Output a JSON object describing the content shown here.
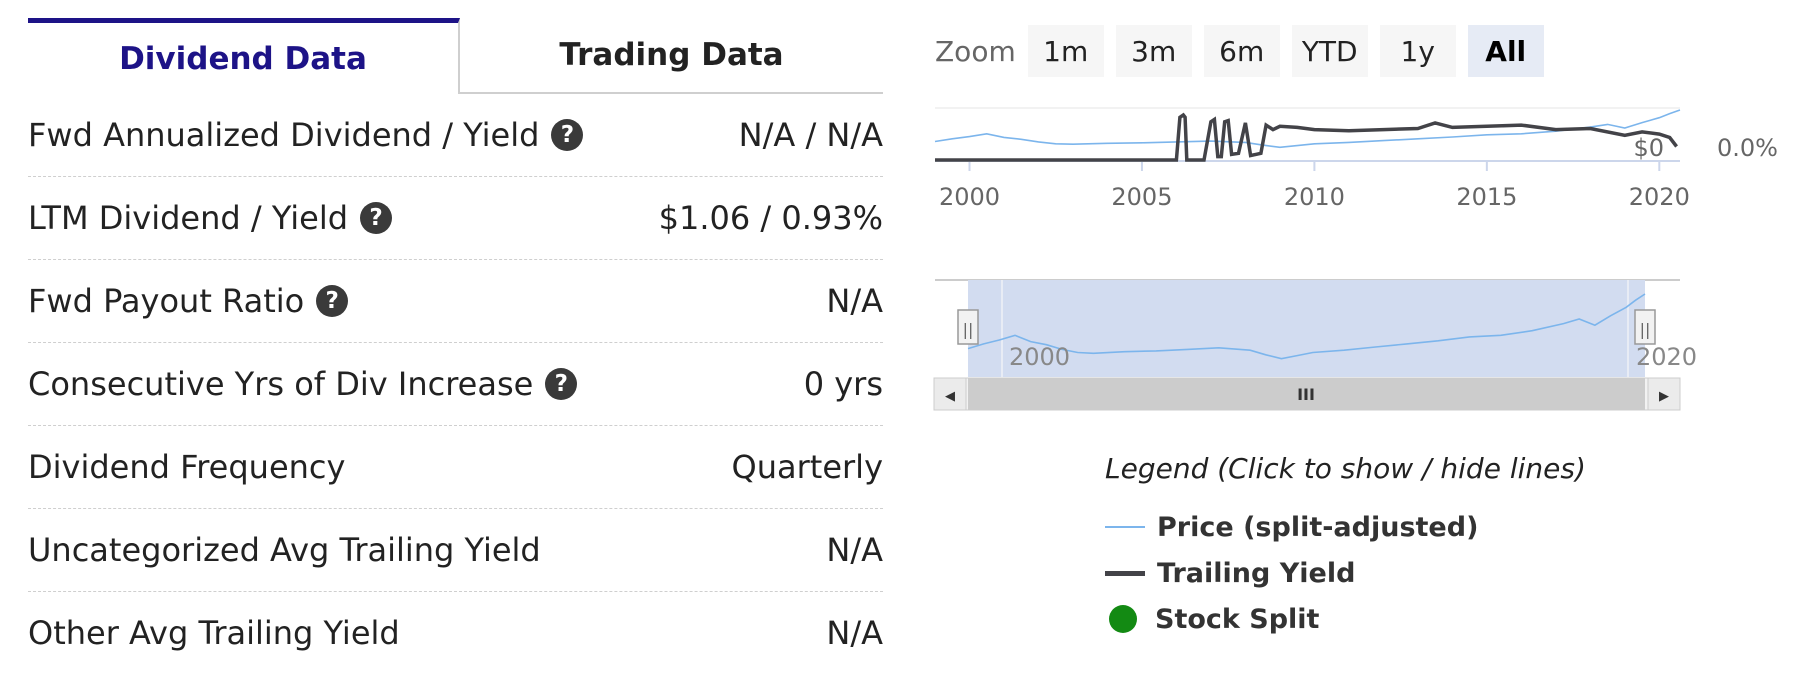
{
  "tabs": [
    {
      "label": "Dividend Data"
    },
    {
      "label": "Trading Data"
    }
  ],
  "rows": [
    {
      "label": "Fwd Annualized Dividend / Yield",
      "value": "N/A / N/A"
    },
    {
      "label": "LTM Dividend / Yield",
      "value": "$1.06 / 0.93%"
    },
    {
      "label": "Fwd Payout Ratio",
      "value": "N/A"
    },
    {
      "label": "Consecutive Yrs of Div Increase",
      "value": "0 yrs"
    },
    {
      "label": "Dividend Frequency",
      "value": "Quarterly"
    },
    {
      "label": "Uncategorized Avg Trailing Yield",
      "value": "N/A"
    },
    {
      "label": "Other Avg Trailing Yield",
      "value": "N/A"
    }
  ],
  "help_glyph": "?",
  "zoom": {
    "label": "Zoom",
    "buttons": [
      "1m",
      "3m",
      "6m",
      "YTD",
      "1y",
      "All"
    ],
    "selected": "All"
  },
  "colors": {
    "accent": "#1d1387",
    "price": "#7cb5ec",
    "yield": "#434348",
    "split": "#138a13",
    "navigator_fill": "#d2dcf0"
  },
  "chart_data": {
    "type": "line",
    "x_range": [
      1999,
      2020.6
    ],
    "x_ticks": [
      "2000",
      "2005",
      "2010",
      "2015",
      "2020"
    ],
    "left_axis_label": "$0",
    "right_axis_label": "0.0%",
    "series": [
      {
        "name": "Price (split-adjusted)",
        "x": [
          1999.0,
          1999.5,
          2000.0,
          2000.5,
          2001.0,
          2001.5,
          2002.0,
          2002.5,
          2003.0,
          2004.0,
          2005.0,
          2006.0,
          2007.0,
          2008.0,
          2008.5,
          2009.0,
          2009.5,
          2010.0,
          2011.0,
          2012.0,
          2013.0,
          2014.0,
          2015.0,
          2016.0,
          2017.0,
          2018.0,
          2018.5,
          2019.0,
          2019.5,
          2020.0,
          2020.3,
          2020.6
        ],
        "values": [
          3.0,
          3.6,
          4.1,
          4.7,
          3.9,
          3.5,
          2.9,
          2.5,
          2.4,
          2.6,
          2.7,
          2.9,
          3.1,
          2.8,
          2.2,
          1.7,
          2.1,
          2.5,
          2.8,
          3.2,
          3.6,
          4.0,
          4.5,
          4.7,
          5.3,
          6.2,
          6.8,
          6.0,
          7.2,
          8.3,
          9.2,
          10.0
        ]
      },
      {
        "name": "Trailing Yield",
        "x": [
          1999.0,
          2005.9,
          2006.0,
          2006.1,
          2006.2,
          2006.25,
          2006.3,
          2006.4,
          2006.5,
          2006.8,
          2007.0,
          2007.1,
          2007.2,
          2007.3,
          2007.4,
          2007.5,
          2007.6,
          2007.8,
          2008.0,
          2008.15,
          2008.3,
          2008.45,
          2008.6,
          2008.8,
          2009.0,
          2009.5,
          2010.0,
          2011.0,
          2012.0,
          2013.0,
          2013.5,
          2014.0,
          2015.0,
          2016.0,
          2017.0,
          2018.0,
          2019.0,
          2019.5,
          2020.0,
          2020.3,
          2020.5
        ],
        "values": [
          0,
          0,
          0,
          3.8,
          4.0,
          3.8,
          0,
          0,
          0,
          0,
          3.4,
          3.6,
          0.3,
          0.3,
          3.4,
          3.5,
          0.5,
          0.6,
          3.3,
          0.4,
          0.5,
          0.6,
          3.1,
          2.7,
          3.0,
          2.9,
          2.7,
          2.6,
          2.7,
          2.8,
          3.3,
          2.9,
          3.0,
          3.1,
          2.7,
          2.8,
          2.2,
          2.5,
          2.3,
          2.0,
          1.2
        ]
      }
    ],
    "navigator_ticks": [
      "2000",
      "2020"
    ],
    "scroll_glyphs": {
      "left": "◀",
      "right": "▶",
      "grip": "III",
      "handle": "||"
    }
  },
  "legend": {
    "title": "Legend (Click to show / hide lines)",
    "items": [
      {
        "label": "Price (split-adjusted)"
      },
      {
        "label": "Trailing Yield"
      },
      {
        "label": "Stock Split"
      }
    ]
  }
}
